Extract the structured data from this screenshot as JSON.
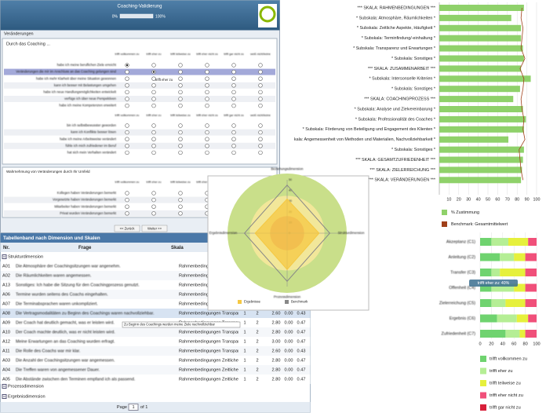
{
  "form": {
    "title": "Coaching-Validierung",
    "progress_start": "0%",
    "progress_end": "100%",
    "section": "Veränderungen",
    "question_block": "Durch das Coaching ...",
    "columns": [
      "trifft vollkommen zu",
      "trifft eher zu",
      "trifft teilweise zu",
      "trifft eher nicht zu",
      "trifft gar nicht zu",
      "weiß nicht/keine"
    ],
    "items": [
      "habe ich meine beruflichen Ziele erreicht",
      "Veränderungen die mir im Anschluss an das Coaching gelungen sind",
      "habe ich mehr Klarheit über meine Situation gewonnen",
      "kann ich besser mit Belastungen umgehen",
      "habe ich neue Handlungsmöglichkeiten entwickelt",
      "verfüge ich über neue Perspektiven",
      "habe ich meine Kompetenzen erweitert"
    ],
    "items_b": [
      "bin ich selbstbewusster geworden",
      "kann ich Konflikte besser lösen",
      "habe ich meine Arbeitsweise verändert",
      "fühle ich mich zufriedener im Beruf",
      "hat sich mein Verhalten verändert"
    ],
    "answers": [
      0,
      1
    ],
    "tooltip": "trifft eher zu",
    "block2": "Wahrnehmung von Veränderungen durch Ihr Umfeld",
    "items2": [
      "Kollegen haben Veränderungen bemerkt",
      "Vorgesetzte haben Veränderungen bemerkt",
      "Mitarbeiter haben Veränderungen bemerkt",
      "Privat wurden Veränderungen bemerkt"
    ],
    "back": "<< Zurück",
    "next": "Weiter >>"
  },
  "table": {
    "title": "Tabellenband nach Dimension und Skalen",
    "headers": [
      "Nr.",
      "Frage",
      "Skala"
    ],
    "groups": [
      "Strukturdimension",
      "Prozessdimension",
      "Ergebnisdimension"
    ],
    "rows": [
      {
        "nr": "A01",
        "frage": "Die Atmosphäre der Coachingsitzungen war angenehm.",
        "skala": "Rahmenbedingungen Atmosphäre, Räumlichkeiten"
      },
      {
        "nr": "A02",
        "frage": "Die Räumlichkeiten waren angemessen.",
        "skala": "Rahmenbedingungen Atmosphäre, Räumlichkeiten"
      },
      {
        "nr": "A13",
        "frage": "Sonstiges: Ich habe die Sitzung für den Coachingprozess genutzt.",
        "skala": "Rahmenbedingungen Atmosphäre, Räumlichkeiten"
      },
      {
        "nr": "A06",
        "frage": "Termine wurden seitens des Coachs eingehalten.",
        "skala": "Rahmenbedingungen Terminfindung"
      },
      {
        "nr": "A07",
        "frage": "Die Terminabsprachen waren unkompliziert.",
        "skala": "Rahmenbedingungen Terminfindung"
      },
      {
        "nr": "A08",
        "frage": "Die Vertragsmodalitäten zu Beginn des Coachings waren nachvollziehbar.",
        "skala": "Rahmenbedingungen Transparenz und Erwartungen",
        "stats": [
          "1",
          "2",
          "2.60",
          "0.00",
          "0.43"
        ]
      },
      {
        "nr": "A09",
        "frage": "Der Coach hat deutlich gemacht, was er leisten wird.",
        "skala": "Rahmenbedingungen Transparenz und Erwartungen",
        "stats": [
          "1",
          "2",
          "2.80",
          "0.00",
          "0.47"
        ]
      },
      {
        "nr": "A10",
        "frage": "Der Coach machte deutlich, was er nicht leisten wird.",
        "skala": "Rahmenbedingungen Transparenz und Erwartungen",
        "stats": [
          "1",
          "2",
          "2.80",
          "0.00",
          "0.47"
        ]
      },
      {
        "nr": "A12",
        "frage": "Meine Erwartungen an das Coaching wurden erfragt.",
        "skala": "Rahmenbedingungen Transparenz und Erwartungen",
        "stats": [
          "1",
          "2",
          "3.00",
          "0.00",
          "0.47"
        ]
      },
      {
        "nr": "A11",
        "frage": "Die Rolle des Coachs war mir klar.",
        "skala": "Rahmenbedingungen Transparenz und Erwartungen",
        "stats": [
          "1",
          "2",
          "2.60",
          "0.00",
          "0.43"
        ]
      },
      {
        "nr": "A03",
        "frage": "Die Anzahl der Coachingsitzungen war angemessen.",
        "skala": "Rahmenbedingungen Zeitliche Aspekte, Häufigkeit",
        "stats": [
          "1",
          "2",
          "2.80",
          "0.00",
          "0.47"
        ]
      },
      {
        "nr": "A04",
        "frage": "Die Treffen waren von angemessener Dauer.",
        "skala": "Rahmenbedingungen Zeitliche Aspekte, Häufigkeit",
        "stats": [
          "1",
          "2",
          "2.80",
          "0.00",
          "0.47"
        ]
      },
      {
        "nr": "A05",
        "frage": "Die Abstände zwischen den Terminen empfand ich als passend.",
        "skala": "Rahmenbedingungen Zeitliche Aspekte, Häufigkeit",
        "stats": [
          "1",
          "2",
          "2.80",
          "0.00",
          "0.47"
        ]
      }
    ],
    "tooltip": "Zu Beginn des Coachings wurden meine Ziele nachvollziehbar",
    "pager": {
      "label": "Page",
      "page": "1",
      "of": "of 1"
    }
  },
  "chart_data": [
    {
      "type": "bar",
      "orientation": "horizontal",
      "categories": [
        "*** SKALA: RAHMENBEDINGUNGEN ***",
        "* Subskala: Atmosphäre, Räumlichkeiten *",
        "* Subskala: Zeitliche Aspekte, Häufigkeit *",
        "* Subskala: Terminfindung/-einhaltung *",
        "* Subskala: Transparenz und Erwartungen *",
        "* Subskala: Sonstiges *",
        "*** SKALA: ZUSAMMENARBEIT ***",
        "* Subskala: Intersonselle Kriterien *",
        "* Subskala: Sonstiges *",
        "*** SKALA: COACHINGPROZESS ***",
        "* Subskala: Analyse und Zielvereinbarung *",
        "* Subskala: Professionalität des Coaches *",
        "* Subskala: Förderung von Beteiligung und Engagement des Klienten *",
        "kala: Angemessenheit von Methoden und Materialien, Nachvollziehbarkeit *",
        "* Subskala: Sonstiges *",
        "*** SKALA: GESAMTZUFRIEDENHEIT ***",
        "*** SKALA: ZIELERREICHUNG ***",
        "*** SKALA: VERÄNDERUNGEN ***"
      ],
      "series": [
        {
          "name": "% Zustimmung",
          "color": "#8fd16a",
          "values": [
            87,
            74,
            84,
            84,
            86,
            87,
            84,
            94,
            83,
            76,
            86,
            89,
            87,
            71,
            87,
            86,
            85,
            84
          ]
        },
        {
          "name": "Benchmark: Gesamtmittelwert",
          "color": "#a0401a",
          "mark": "line",
          "values": [
            85,
            84,
            86,
            85,
            84,
            88,
            83,
            87,
            86,
            84,
            85,
            87,
            86,
            88,
            82,
            83,
            84,
            86
          ]
        }
      ],
      "xlim": [
        0,
        100
      ],
      "xticks": [
        10,
        20,
        30,
        40,
        50,
        60,
        70,
        80,
        90,
        100
      ],
      "grid": true,
      "legend": "bottom-left"
    },
    {
      "type": "radar",
      "categories": [
        "Beziehungsdimension",
        "Strukturdimension",
        "Prozessdimension",
        "Ergebnisdimension"
      ],
      "series": [
        {
          "name": "Ergebnisse",
          "color": "#f5c842",
          "values": [
            32,
            30,
            34,
            30
          ]
        },
        {
          "name": "Benchmark",
          "color": "#888888",
          "values": [
            45,
            40,
            45,
            40
          ]
        }
      ],
      "rlim": [
        0,
        50
      ],
      "rticks": [
        0,
        10,
        20,
        30,
        40,
        50
      ],
      "legend": "bottom"
    },
    {
      "type": "stacked_bar",
      "orientation": "horizontal",
      "categories": [
        "Akzeptanz (C1)",
        "Anleitung (C2)",
        "Transfer (C3)",
        "Offenheit (C4)",
        "Zielerreichung (C5)",
        "Ergebnis (C6)",
        "Zufriedenheit (C7)"
      ],
      "series": [
        {
          "name": "trifft vollkommen zu",
          "color": "#6fd36f",
          "values": [
            20,
            35,
            20,
            20,
            20,
            30,
            45
          ]
        },
        {
          "name": "trifft eher zu",
          "color": "#b5ee95",
          "values": [
            30,
            25,
            15,
            40,
            25,
            35,
            25
          ]
        },
        {
          "name": "trifft teilweise zu",
          "color": "#e6f03c",
          "values": [
            35,
            20,
            45,
            20,
            35,
            20,
            10
          ]
        },
        {
          "name": "trifft eher nicht zu",
          "color": "#f0507a",
          "values": [
            15,
            20,
            20,
            20,
            20,
            15,
            20
          ]
        },
        {
          "name": "trifft gar nicht zu",
          "color": "#d8203a",
          "values": [
            0,
            0,
            0,
            0,
            0,
            0,
            0
          ]
        }
      ],
      "xlim": [
        0,
        100
      ],
      "xticks": [
        0,
        20,
        40,
        60,
        80,
        100
      ],
      "tooltip": "trifft eher zu: 40%",
      "legend": "bottom"
    }
  ]
}
